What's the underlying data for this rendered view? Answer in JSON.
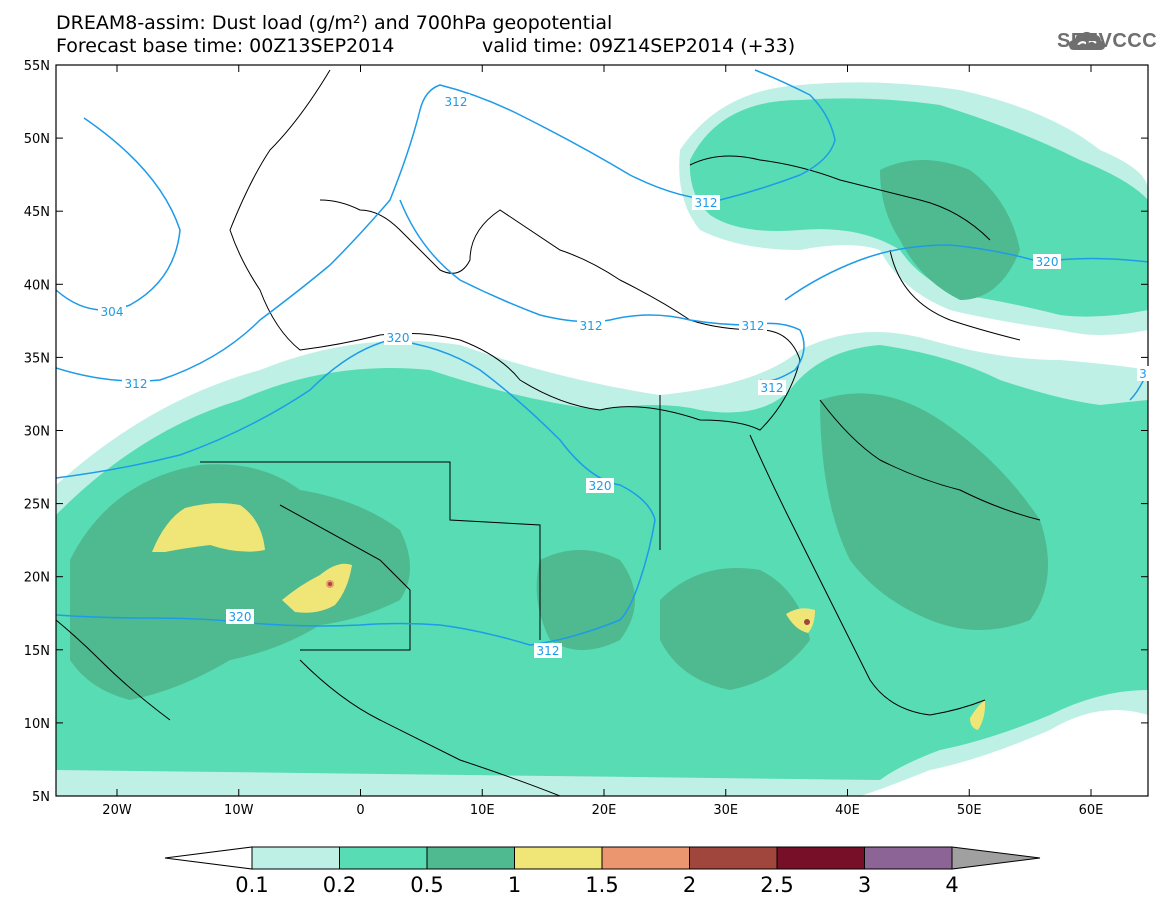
{
  "title_line1": "DREAM8-assim: Dust load (g/m²) and 700hPa geopotential",
  "title_line2": "Forecast base time: 00Z13SEP2014",
  "valid_time": "valid time: 09Z14SEP2014 (+33)",
  "logo_text": "SEEVCCC",
  "axes": {
    "lat_labels": [
      "55N",
      "50N",
      "45N",
      "40N",
      "35N",
      "30N",
      "25N",
      "20N",
      "15N",
      "10N",
      "5N"
    ],
    "lon_labels": [
      "20W",
      "10W",
      "0",
      "10E",
      "20E",
      "30E",
      "40E",
      "50E",
      "60E"
    ]
  },
  "contour_labels": [
    "312",
    "304",
    "312",
    "320",
    "312",
    "312",
    "312",
    "312",
    "320",
    "320",
    "320",
    "312",
    "3"
  ],
  "colorbar": {
    "labels": [
      "0.1",
      "0.2",
      "0.5",
      "1",
      "1.5",
      "2",
      "2.5",
      "3",
      "4"
    ],
    "colors": [
      "#bff0e6",
      "#57dcb4",
      "#4fb990",
      "#f0e678",
      "#eb966e",
      "#a0463c",
      "#780f28",
      "#8c6496",
      "#a0a0a0"
    ]
  },
  "colors": {
    "level1": "#bff0e6",
    "level2": "#57dcb4",
    "level3": "#4fb990",
    "level4": "#f0e678",
    "level5": "#eb966e",
    "level6": "#a0463c",
    "contour": "#1e9be8",
    "logo": "#6f6f6f"
  }
}
